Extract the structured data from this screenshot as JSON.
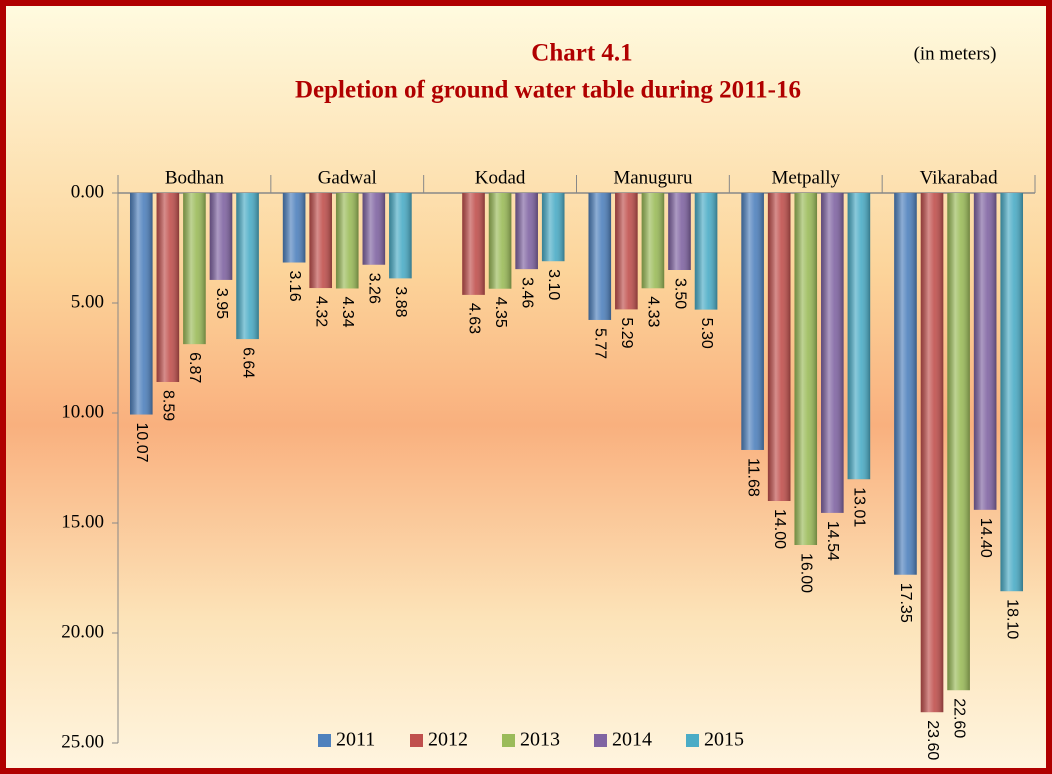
{
  "chart_data": {
    "type": "bar",
    "title": "Chart 4.1",
    "subtitle": "Depletion of ground water table during  2011-16",
    "unit_note": "(in meters)",
    "categories": [
      "Bodhan",
      "Gadwal",
      "Kodad",
      "Manuguru",
      "Metpally",
      "Vikarabad"
    ],
    "series": [
      {
        "name": "2011",
        "color": "#4f81bd",
        "values": [
          10.07,
          3.16,
          null,
          5.77,
          11.68,
          17.35
        ],
        "value_labels": [
          "10.07",
          "3.16",
          null,
          "5.77",
          "11.68",
          "17.35"
        ]
      },
      {
        "name": "2012",
        "color": "#c0504d",
        "values": [
          8.59,
          4.32,
          4.63,
          5.29,
          14.0,
          23.6
        ],
        "value_labels": [
          "8.59",
          "4.32",
          "4.63",
          "5.29",
          "14.00",
          "23.60"
        ]
      },
      {
        "name": "2013",
        "color": "#9bbb59",
        "values": [
          6.87,
          4.34,
          4.35,
          4.33,
          16.0,
          22.6
        ],
        "value_labels": [
          "6.87",
          "4.34",
          "4.35",
          "4.33",
          "16.00",
          "22.60"
        ]
      },
      {
        "name": "2014",
        "color": "#8064a2",
        "values": [
          3.95,
          3.26,
          3.46,
          3.5,
          14.54,
          14.4
        ],
        "value_labels": [
          "3.95",
          "3.26",
          "3.46",
          "3.50",
          "14.54",
          "14.40"
        ]
      },
      {
        "name": "2015",
        "color": "#4bacc6",
        "values": [
          6.64,
          3.88,
          3.1,
          5.3,
          13.01,
          18.1
        ],
        "value_labels": [
          "6.64",
          "3.88",
          "3.10",
          "5.30",
          "13.01",
          "18.10"
        ]
      }
    ],
    "ylim": [
      0,
      25
    ],
    "y_inverted": true,
    "yticks": [
      {
        "value": 0,
        "label": "0.00"
      },
      {
        "value": 5,
        "label": "5.00"
      },
      {
        "value": 10,
        "label": "10.00"
      },
      {
        "value": 15,
        "label": "15.00"
      },
      {
        "value": 20,
        "label": "20.00"
      },
      {
        "value": 25,
        "label": "25.00"
      }
    ],
    "legend": "bottom"
  }
}
